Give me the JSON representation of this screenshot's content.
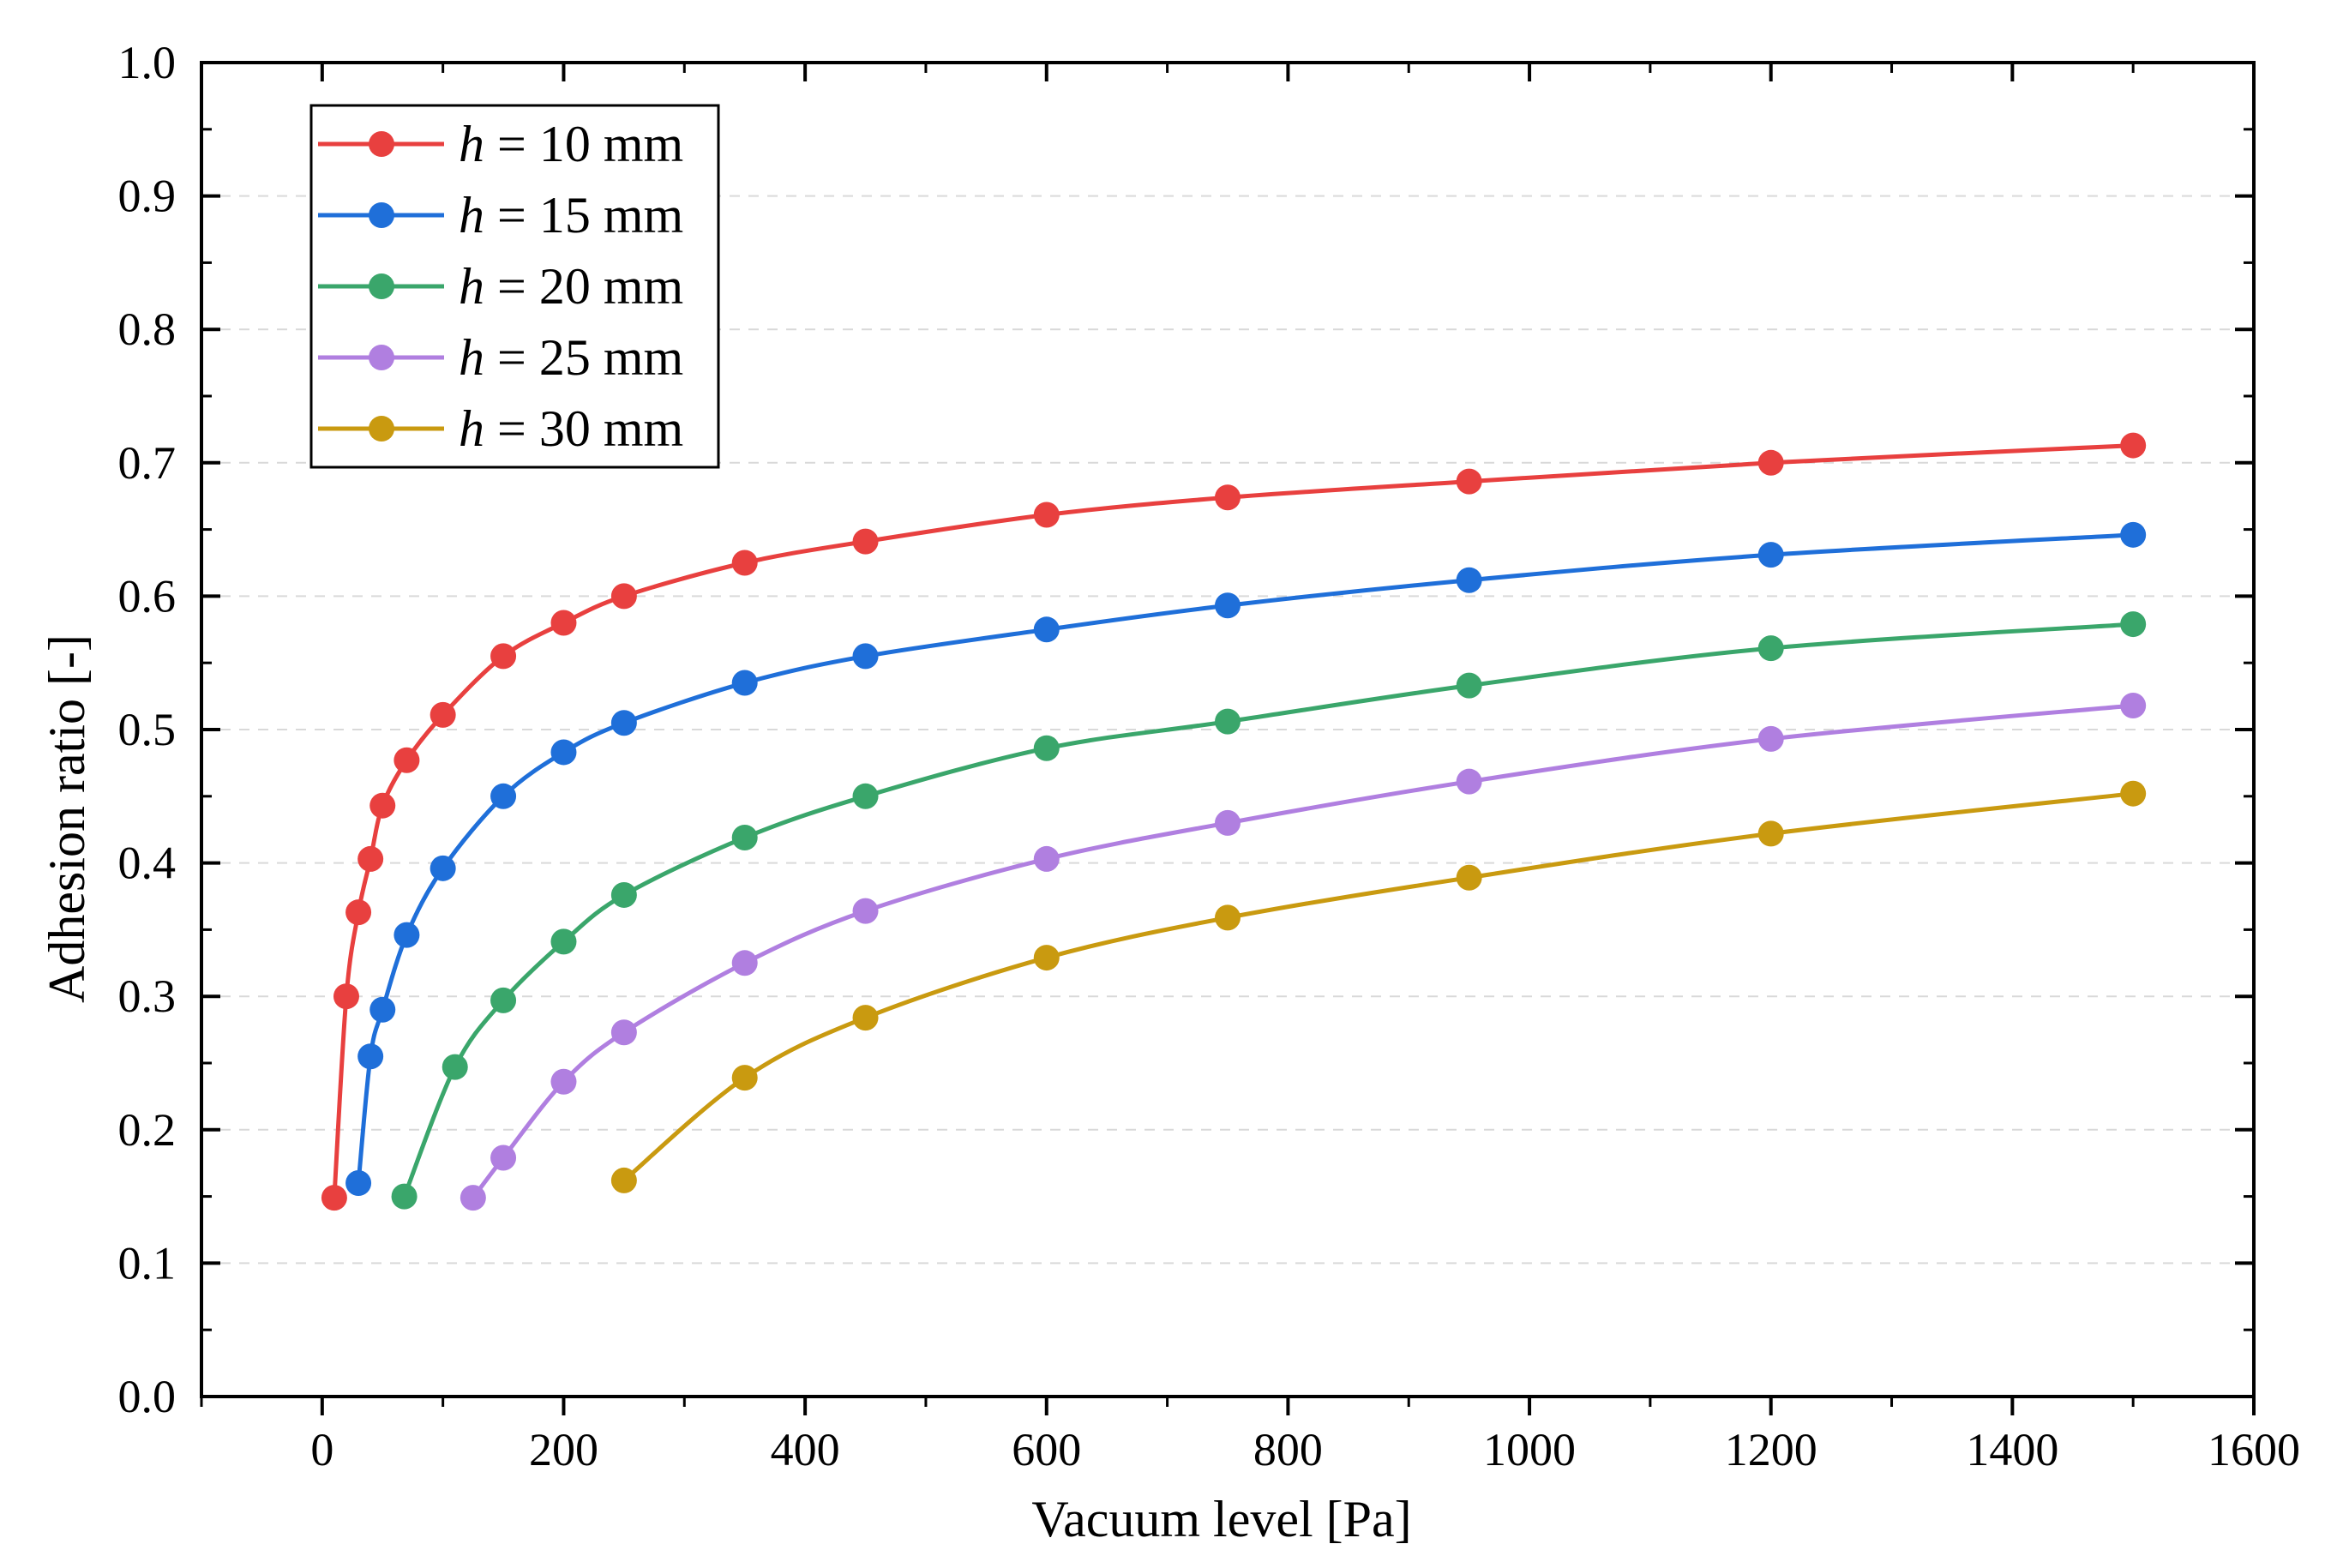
{
  "chart_data": {
    "type": "line",
    "title": "",
    "xlabel": "Vacuum level [Pa]",
    "ylabel": "Adhesion ratio [-]",
    "xlim": [
      -100,
      1600
    ],
    "ylim": [
      0.0,
      1.0
    ],
    "x_ticks": [
      0,
      200,
      400,
      600,
      800,
      1000,
      1200,
      1400,
      1600
    ],
    "x_tick_labels": [
      "0",
      "200",
      "400",
      "600",
      "800",
      "1000",
      "1200",
      "1400",
      "1600"
    ],
    "y_ticks": [
      0.0,
      0.1,
      0.2,
      0.3,
      0.4,
      0.5,
      0.6,
      0.7,
      0.8,
      0.9,
      1.0
    ],
    "y_tick_labels": [
      "0.0",
      "0.1",
      "0.2",
      "0.3",
      "0.4",
      "0.5",
      "0.6",
      "0.7",
      "0.8",
      "0.9",
      "1.0"
    ],
    "grid": "horizontal dashed",
    "legend_position": "top-left",
    "series": [
      {
        "name": "h = 10 mm",
        "legend_var": "h",
        "legend_rest": " = 10 mm",
        "color": "#e8403f",
        "x": [
          10,
          20,
          30,
          40,
          50,
          70,
          100,
          150,
          200,
          250,
          350,
          450,
          600,
          750,
          950,
          1200,
          1500
        ],
        "y": [
          0.149,
          0.3,
          0.363,
          0.403,
          0.443,
          0.477,
          0.511,
          0.555,
          0.58,
          0.6,
          0.625,
          0.641,
          0.661,
          0.674,
          0.686,
          0.7,
          0.713
        ]
      },
      {
        "name": "h = 15 mm",
        "legend_var": "h",
        "legend_rest": " = 15 mm",
        "color": "#1f6fd9",
        "x": [
          30,
          40,
          50,
          70,
          100,
          150,
          200,
          250,
          350,
          450,
          600,
          750,
          950,
          1200,
          1500
        ],
        "y": [
          0.16,
          0.255,
          0.29,
          0.346,
          0.396,
          0.45,
          0.483,
          0.505,
          0.535,
          0.555,
          0.575,
          0.593,
          0.612,
          0.631,
          0.646
        ]
      },
      {
        "name": "h = 20 mm",
        "legend_var": "h",
        "legend_rest": " = 20 mm",
        "color": "#3aa66b",
        "x": [
          68,
          110,
          150,
          200,
          250,
          350,
          450,
          600,
          750,
          950,
          1200,
          1500
        ],
        "y": [
          0.15,
          0.247,
          0.297,
          0.341,
          0.376,
          0.419,
          0.45,
          0.486,
          0.506,
          0.533,
          0.561,
          0.579
        ]
      },
      {
        "name": "h = 25 mm",
        "legend_var": "h",
        "legend_rest": " = 25 mm",
        "color": "#b07fe0",
        "x": [
          125,
          150,
          200,
          250,
          350,
          450,
          600,
          750,
          950,
          1200,
          1500
        ],
        "y": [
          0.149,
          0.179,
          0.236,
          0.273,
          0.325,
          0.364,
          0.403,
          0.43,
          0.461,
          0.493,
          0.518
        ]
      },
      {
        "name": "h = 30 mm",
        "legend_var": "h",
        "legend_rest": " = 30 mm",
        "color": "#c99a10",
        "x": [
          250,
          350,
          450,
          600,
          750,
          950,
          1200,
          1500
        ],
        "y": [
          0.162,
          0.239,
          0.284,
          0.329,
          0.359,
          0.389,
          0.422,
          0.452
        ]
      }
    ]
  }
}
